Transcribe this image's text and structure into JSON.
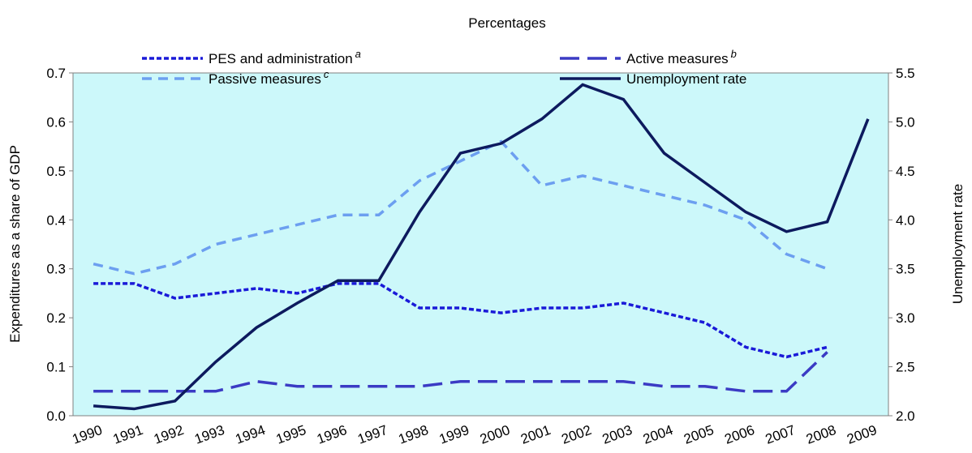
{
  "chart_data": {
    "type": "line",
    "title": "Percentages",
    "y_label": "Expenditures as a share of GDP",
    "y2_label": "Unemployment rate",
    "categories": [
      "1990",
      "1991",
      "1992",
      "1993",
      "1994",
      "1995",
      "1996",
      "1997",
      "1998",
      "1999",
      "2000",
      "2001",
      "2002",
      "2003",
      "2004",
      "2005",
      "2006",
      "2007",
      "2008",
      "2009"
    ],
    "series": [
      {
        "name": "PES and administration",
        "superscript": "a",
        "color": "#1a1ad8",
        "dash": "6,3",
        "values": [
          0.27,
          0.27,
          0.24,
          0.25,
          0.26,
          0.25,
          0.27,
          0.27,
          0.22,
          0.22,
          0.21,
          0.22,
          0.22,
          0.23,
          0.21,
          0.19,
          0.14,
          0.12,
          0.14,
          null
        ]
      },
      {
        "name": "Active measures",
        "superscript": "b",
        "color": "#3b3bc4",
        "dash": "24,10",
        "values": [
          0.05,
          0.05,
          0.05,
          0.05,
          0.07,
          0.06,
          0.06,
          0.06,
          0.06,
          0.07,
          0.07,
          0.07,
          0.07,
          0.07,
          0.06,
          0.06,
          0.05,
          0.05,
          0.13,
          null
        ]
      },
      {
        "name": "Passive measures",
        "superscript": "c",
        "color": "#6c9ff0",
        "dash": "12,8",
        "values": [
          0.31,
          0.29,
          0.31,
          0.35,
          0.37,
          0.39,
          0.41,
          0.41,
          0.48,
          0.52,
          0.56,
          0.47,
          0.49,
          0.47,
          0.45,
          0.43,
          0.4,
          0.33,
          0.3,
          null
        ]
      },
      {
        "name": "Unemployment rate",
        "color": "#0d1a5e",
        "axis": "y2",
        "values": [
          2.1,
          2.07,
          2.15,
          2.55,
          2.9,
          3.15,
          3.38,
          3.38,
          4.08,
          4.68,
          4.78,
          5.03,
          5.38,
          5.23,
          4.68,
          4.38,
          4.08,
          3.88,
          3.98,
          5.03
        ]
      }
    ],
    "ylim": [
      0,
      0.7
    ],
    "yticks": [
      {
        "value": 0,
        "label": "0.0"
      },
      0.1,
      0.2,
      0.3,
      0.4,
      0.5,
      0.6,
      0.7
    ],
    "y2lim": [
      2,
      5.5
    ],
    "y2ticks": [
      {
        "value": 2,
        "label": "2.0"
      },
      2.5,
      {
        "value": 3,
        "label": "3.0"
      },
      3.5,
      {
        "value": 4,
        "label": "4.0"
      },
      4.5,
      {
        "value": 5,
        "label": "5.0"
      },
      5.5
    ],
    "background": "#ccf8fa"
  }
}
